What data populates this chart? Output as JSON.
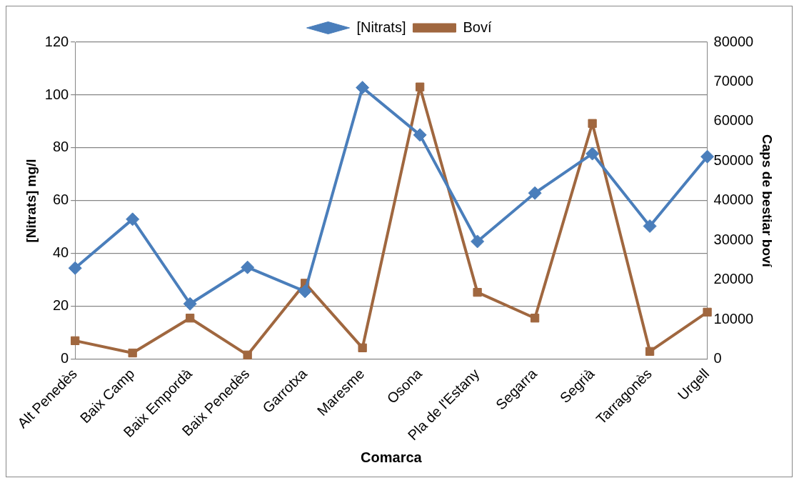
{
  "chart_data": {
    "type": "line",
    "xlabel": "Comarca",
    "ylabel": "[Nitrats] mg/l",
    "y2label": "Caps de bestiar boví",
    "categories": [
      "Alt Penedès",
      "Baix Camp",
      "Baix Empordà",
      "Baix Penedès",
      "Garrotxa",
      "Maresme",
      "Osona",
      "Pla de l'Estany",
      "Segarra",
      "Segrià",
      "Tarragonès",
      "Urgell"
    ],
    "series": [
      {
        "name": "[Nitrats]",
        "color": "#4a7ebb",
        "marker": "diamond",
        "values": [
          34.5,
          53,
          21,
          34.8,
          25.7,
          102.8,
          84.9,
          44.6,
          62.9,
          77.8,
          50.4,
          76.7
        ]
      },
      {
        "name": "Boví",
        "color": "#a0673f",
        "marker": "square",
        "axis": "y2",
        "values": [
          4700,
          1600,
          10400,
          1100,
          19200,
          2900,
          68700,
          16900,
          10400,
          59500,
          2000,
          11900
        ]
      }
    ],
    "ylim": [
      0,
      120
    ],
    "yticks": [
      0,
      20,
      40,
      60,
      80,
      100,
      120
    ],
    "y2lim": [
      0,
      80000
    ],
    "y2ticks": [
      0,
      10000,
      20000,
      30000,
      40000,
      50000,
      60000,
      70000,
      80000
    ],
    "grid": "y",
    "legend": "top",
    "line_style": "solid"
  }
}
